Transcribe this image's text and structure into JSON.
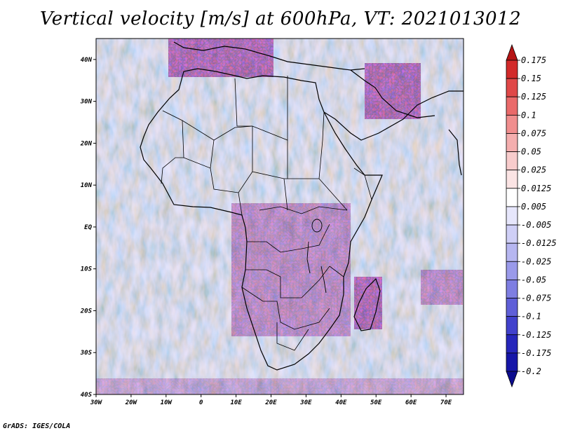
{
  "title": "Vertical velocity [m/s] at 600hPa, VT: 2021013012",
  "footer": "GrADS: IGES/COLA",
  "map": {
    "lat_labels": [
      "40N",
      "30N",
      "20N",
      "10N",
      "EQ",
      "10S",
      "20S",
      "30S",
      "40S"
    ],
    "lon_labels": [
      "30W",
      "20W",
      "10W",
      "0",
      "10E",
      "20E",
      "30E",
      "40E",
      "50E",
      "60E",
      "70E"
    ],
    "lat_range": [
      -40,
      45
    ],
    "lon_range": [
      -30,
      75
    ],
    "field": "vertical velocity",
    "level": "600hPa",
    "valid_time": "2021013012"
  },
  "colorbar": {
    "labels": [
      "0.175",
      "0.15",
      "0.125",
      "0.1",
      "0.075",
      "0.05",
      "0.025",
      "0.0125",
      "0.005",
      "-0.005",
      "-0.0125",
      "-0.025",
      "-0.05",
      "-0.075",
      "-0.1",
      "-0.125",
      "-0.175",
      "-0.2"
    ],
    "colors": [
      "#b51414",
      "#d22a2a",
      "#e04848",
      "#ea6a6a",
      "#f08e8e",
      "#f4aeae",
      "#f8cccc",
      "#fbe4e4",
      "#ffffff",
      "#e6e6fb",
      "#cfcff6",
      "#b6b6f0",
      "#9a9aea",
      "#7e7ee2",
      "#5f5fd8",
      "#4141cc",
      "#2626bb",
      "#1616a8",
      "#0c0c8e"
    ]
  }
}
